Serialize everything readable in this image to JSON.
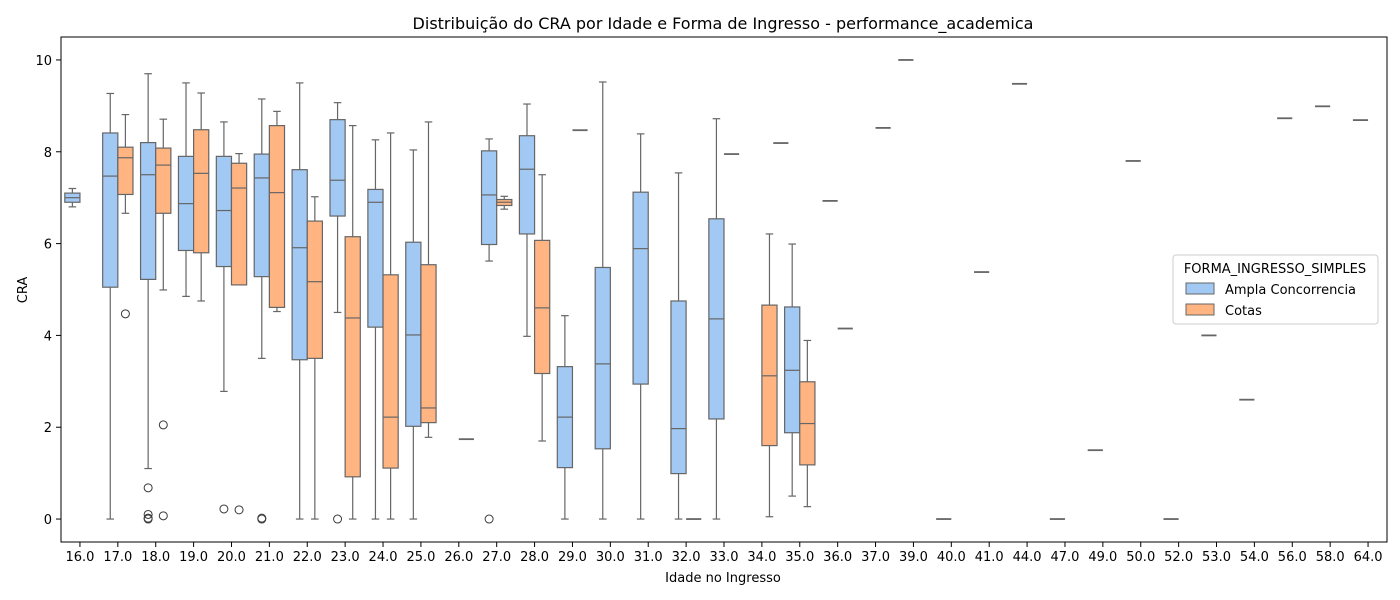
{
  "chart_data": {
    "type": "box",
    "title": "Distribuição do CRA por Idade e Forma de Ingresso - performance_academica",
    "xlabel": "Idade no Ingresso",
    "ylabel": "CRA",
    "ylim": [
      -0.5,
      10.5
    ],
    "yticks": [
      0,
      2,
      4,
      6,
      8,
      10
    ],
    "categories": [
      "16.0",
      "17.0",
      "18.0",
      "19.0",
      "20.0",
      "21.0",
      "22.0",
      "23.0",
      "24.0",
      "25.0",
      "26.0",
      "27.0",
      "28.0",
      "29.0",
      "30.0",
      "31.0",
      "32.0",
      "33.0",
      "34.0",
      "35.0",
      "36.0",
      "37.0",
      "39.0",
      "40.0",
      "41.0",
      "44.0",
      "47.0",
      "49.0",
      "50.0",
      "52.0",
      "53.0",
      "54.0",
      "56.0",
      "58.0",
      "64.0"
    ],
    "legend": {
      "title": "FORMA_INGRESSO_SIMPLES",
      "position": "center-right",
      "entries": [
        {
          "label": "Ampla Concorrencia",
          "color": "#a1c9f4"
        },
        {
          "label": "Cotas",
          "color": "#ffb482"
        }
      ]
    },
    "colors": {
      "edge": "#666666",
      "ampla": "#a1c9f4",
      "cotas": "#ffb482"
    },
    "series": [
      {
        "name": "Ampla Concorrencia",
        "boxes": [
          {
            "category": "16.0",
            "whislo": 6.8,
            "q1": 6.9,
            "med": 7.0,
            "q3": 7.1,
            "whishi": 7.2,
            "fliers": []
          },
          {
            "category": "17.0",
            "whislo": 0.0,
            "q1": 5.05,
            "med": 7.47,
            "q3": 8.41,
            "whishi": 9.27,
            "fliers": []
          },
          {
            "category": "18.0",
            "whislo": 1.1,
            "q1": 5.22,
            "med": 7.5,
            "q3": 8.2,
            "whishi": 9.7,
            "fliers": [
              0.68,
              0.1,
              0.02,
              0.0
            ]
          },
          {
            "category": "19.0",
            "whislo": 4.85,
            "q1": 5.85,
            "med": 6.87,
            "q3": 7.9,
            "whishi": 9.5,
            "fliers": []
          },
          {
            "category": "20.0",
            "whislo": 2.78,
            "q1": 5.5,
            "med": 6.72,
            "q3": 7.9,
            "whishi": 8.65,
            "fliers": [
              0.22
            ]
          },
          {
            "category": "21.0",
            "whislo": 3.5,
            "q1": 5.28,
            "med": 7.43,
            "q3": 7.95,
            "whishi": 9.15,
            "fliers": [
              0.02,
              0.0
            ]
          },
          {
            "category": "22.0",
            "whislo": 0.0,
            "q1": 3.47,
            "med": 5.91,
            "q3": 7.61,
            "whishi": 9.5,
            "fliers": []
          },
          {
            "category": "23.0",
            "whislo": 4.5,
            "q1": 6.6,
            "med": 7.38,
            "q3": 8.7,
            "whishi": 9.07,
            "fliers": [
              0.0
            ]
          },
          {
            "category": "24.0",
            "whislo": 0.0,
            "q1": 4.18,
            "med": 6.9,
            "q3": 7.18,
            "whishi": 8.26,
            "fliers": []
          },
          {
            "category": "25.0",
            "whislo": 0.0,
            "q1": 2.02,
            "med": 4.01,
            "q3": 6.03,
            "whishi": 8.04,
            "fliers": []
          },
          {
            "category": "27.0",
            "whislo": 5.62,
            "q1": 5.98,
            "med": 7.06,
            "q3": 8.02,
            "whishi": 8.28,
            "fliers": [
              0.0
            ]
          },
          {
            "category": "28.0",
            "whislo": 3.98,
            "q1": 6.21,
            "med": 7.62,
            "q3": 8.35,
            "whishi": 9.04,
            "fliers": []
          },
          {
            "category": "29.0",
            "whislo": 0.0,
            "q1": 1.12,
            "med": 2.22,
            "q3": 3.32,
            "whishi": 4.43,
            "fliers": []
          },
          {
            "category": "30.0",
            "whislo": 0.0,
            "q1": 1.53,
            "med": 3.38,
            "q3": 5.48,
            "whishi": 9.52,
            "fliers": []
          },
          {
            "category": "31.0",
            "whislo": 0.0,
            "q1": 2.94,
            "med": 5.89,
            "q3": 7.12,
            "whishi": 8.39,
            "fliers": []
          },
          {
            "category": "32.0",
            "whislo": 0.0,
            "q1": 0.99,
            "med": 1.97,
            "q3": 4.75,
            "whishi": 7.54,
            "fliers": []
          },
          {
            "category": "33.0",
            "whislo": 0.0,
            "q1": 2.18,
            "med": 4.36,
            "q3": 6.54,
            "whishi": 8.72,
            "fliers": []
          },
          {
            "category": "35.0",
            "whislo": 0.5,
            "q1": 1.88,
            "med": 3.24,
            "q3": 4.62,
            "whishi": 5.99,
            "fliers": []
          },
          {
            "category": "36.0",
            "whislo": 6.93,
            "q1": 6.93,
            "med": 6.93,
            "q3": 6.93,
            "whishi": 6.93,
            "fliers": []
          },
          {
            "category": "39.0",
            "whislo": 10.0,
            "q1": 10.0,
            "med": 10.0,
            "q3": 10.0,
            "whishi": 10.0,
            "fliers": []
          },
          {
            "category": "40.0",
            "whislo": 0.0,
            "q1": 0.0,
            "med": 0.0,
            "q3": 0.0,
            "whishi": 0.0,
            "fliers": []
          },
          {
            "category": "41.0",
            "whislo": 5.38,
            "q1": 5.38,
            "med": 5.38,
            "q3": 5.38,
            "whishi": 5.38,
            "fliers": []
          },
          {
            "category": "44.0",
            "whislo": 9.48,
            "q1": 9.48,
            "med": 9.48,
            "q3": 9.48,
            "whishi": 9.48,
            "fliers": []
          },
          {
            "category": "47.0",
            "whislo": 0.0,
            "q1": 0.0,
            "med": 0.0,
            "q3": 0.0,
            "whishi": 0.0,
            "fliers": []
          },
          {
            "category": "49.0",
            "whislo": 1.5,
            "q1": 1.5,
            "med": 1.5,
            "q3": 1.5,
            "whishi": 1.5,
            "fliers": []
          },
          {
            "category": "50.0",
            "whislo": 7.8,
            "q1": 7.8,
            "med": 7.8,
            "q3": 7.8,
            "whishi": 7.8,
            "fliers": []
          },
          {
            "category": "52.0",
            "whislo": 0.0,
            "q1": 0.0,
            "med": 0.0,
            "q3": 0.0,
            "whishi": 0.0,
            "fliers": []
          },
          {
            "category": "53.0",
            "whislo": 4.0,
            "q1": 4.0,
            "med": 4.0,
            "q3": 4.0,
            "whishi": 4.0,
            "fliers": []
          },
          {
            "category": "54.0",
            "whislo": 2.6,
            "q1": 2.6,
            "med": 2.6,
            "q3": 2.6,
            "whishi": 2.6,
            "fliers": []
          },
          {
            "category": "56.0",
            "whislo": 8.73,
            "q1": 8.73,
            "med": 8.73,
            "q3": 8.73,
            "whishi": 8.73,
            "fliers": []
          },
          {
            "category": "58.0",
            "whislo": 8.99,
            "q1": 8.99,
            "med": 8.99,
            "q3": 8.99,
            "whishi": 8.99,
            "fliers": []
          },
          {
            "category": "64.0",
            "whislo": 8.69,
            "q1": 8.69,
            "med": 8.69,
            "q3": 8.69,
            "whishi": 8.69,
            "fliers": []
          }
        ]
      },
      {
        "name": "Cotas",
        "boxes": [
          {
            "category": "17.0",
            "whislo": 6.66,
            "q1": 7.07,
            "med": 7.87,
            "q3": 8.1,
            "whishi": 8.81,
            "fliers": [
              4.47
            ]
          },
          {
            "category": "18.0",
            "whislo": 4.99,
            "q1": 6.66,
            "med": 7.71,
            "q3": 8.08,
            "whishi": 8.71,
            "fliers": [
              2.05,
              0.07
            ]
          },
          {
            "category": "19.0",
            "whislo": 4.75,
            "q1": 5.8,
            "med": 7.53,
            "q3": 8.48,
            "whishi": 9.28,
            "fliers": []
          },
          {
            "category": "20.0",
            "whislo": 5.1,
            "q1": 5.1,
            "med": 7.21,
            "q3": 7.75,
            "whishi": 7.96,
            "fliers": [
              0.2
            ]
          },
          {
            "category": "21.0",
            "whislo": 4.52,
            "q1": 4.61,
            "med": 7.11,
            "q3": 8.57,
            "whishi": 8.88,
            "fliers": []
          },
          {
            "category": "22.0",
            "whislo": 0.0,
            "q1": 3.5,
            "med": 5.17,
            "q3": 6.49,
            "whishi": 7.02,
            "fliers": []
          },
          {
            "category": "23.0",
            "whislo": 0.0,
            "q1": 0.92,
            "med": 4.38,
            "q3": 6.15,
            "whishi": 8.57,
            "fliers": []
          },
          {
            "category": "24.0",
            "whislo": 0.0,
            "q1": 1.11,
            "med": 2.22,
            "q3": 5.32,
            "whishi": 8.41,
            "fliers": []
          },
          {
            "category": "25.0",
            "whislo": 1.78,
            "q1": 2.1,
            "med": 2.42,
            "q3": 5.54,
            "whishi": 8.65,
            "fliers": []
          },
          {
            "category": "26.0",
            "whislo": 1.74,
            "q1": 1.74,
            "med": 1.74,
            "q3": 1.74,
            "whishi": 1.74,
            "fliers": []
          },
          {
            "category": "27.0",
            "whislo": 6.75,
            "q1": 6.83,
            "med": 6.9,
            "q3": 6.96,
            "whishi": 7.03,
            "fliers": []
          },
          {
            "category": "28.0",
            "whislo": 1.7,
            "q1": 3.17,
            "med": 4.6,
            "q3": 6.07,
            "whishi": 7.5,
            "fliers": []
          },
          {
            "category": "29.0",
            "whislo": 8.47,
            "q1": 8.47,
            "med": 8.47,
            "q3": 8.47,
            "whishi": 8.47,
            "fliers": []
          },
          {
            "category": "32.0",
            "whislo": 0.0,
            "q1": 0.0,
            "med": 0.0,
            "q3": 0.0,
            "whishi": 0.0,
            "fliers": []
          },
          {
            "category": "33.0",
            "whislo": 7.95,
            "q1": 7.95,
            "med": 7.95,
            "q3": 7.95,
            "whishi": 7.95,
            "fliers": []
          },
          {
            "category": "34.0",
            "whislo": 0.05,
            "q1": 1.6,
            "med": 3.12,
            "q3": 4.66,
            "whishi": 6.21,
            "fliers": []
          },
          {
            "category": "35.0",
            "whislo": 0.27,
            "q1": 1.18,
            "med": 2.08,
            "q3": 2.99,
            "whishi": 3.89,
            "fliers": []
          },
          {
            "category": "36.0",
            "whislo": 4.15,
            "q1": 4.15,
            "med": 4.15,
            "q3": 4.15,
            "whishi": 4.15,
            "fliers": []
          },
          {
            "category": "37.0",
            "whislo": 8.52,
            "q1": 8.52,
            "med": 8.52,
            "q3": 8.52,
            "whishi": 8.52,
            "fliers": []
          },
          {
            "category": "34.0-extra",
            "whislo": 8.19,
            "q1": 8.19,
            "med": 8.19,
            "q3": 8.19,
            "whishi": 8.19,
            "fliers": []
          }
        ]
      }
    ]
  }
}
